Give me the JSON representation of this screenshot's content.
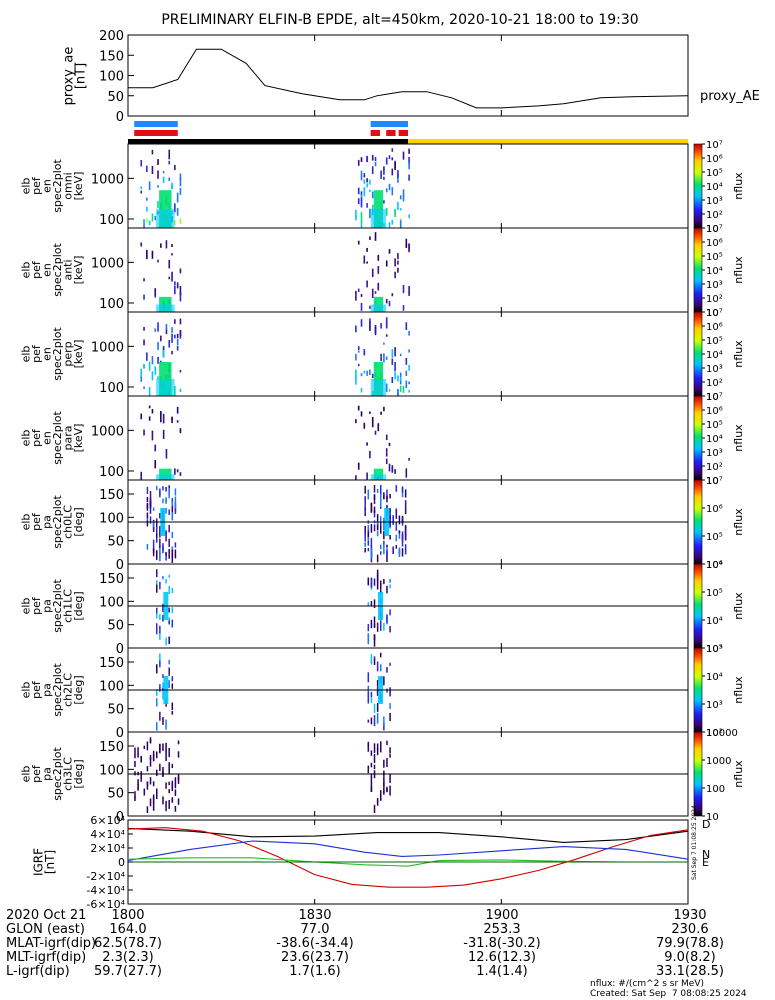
{
  "chart_data": {
    "type": "spectrogram",
    "title": "PRELIMINARY ELFIN-B EPDE, alt=450km, 2020-10-21 18:00 to 19:30",
    "x_range_minutes": [
      0,
      90
    ],
    "x_ticks": [
      "1800",
      "1830",
      "1900",
      "1930"
    ],
    "x_tick_minutes": [
      0,
      30,
      60,
      90
    ],
    "proxy_ae": {
      "ylabel": "proxy_ae\n[nT]",
      "legend": "proxy_AE",
      "ylim": [
        0,
        200
      ],
      "yticks": [
        "0",
        "50",
        "100",
        "150",
        "200"
      ],
      "minutes": [
        0,
        4,
        8,
        11,
        15,
        19,
        22,
        28,
        34,
        38,
        40,
        44,
        48,
        52,
        56,
        60,
        66,
        70,
        76,
        82,
        90
      ],
      "values": [
        70,
        70,
        90,
        165,
        165,
        130,
        75,
        55,
        40,
        40,
        50,
        60,
        60,
        45,
        20,
        20,
        25,
        30,
        45,
        48,
        50
      ]
    },
    "indicator_bars": {
      "blue": [
        [
          1,
          8
        ],
        [
          39,
          45
        ]
      ],
      "red": [
        [
          1,
          8
        ],
        [
          39,
          40.5
        ],
        [
          41.5,
          43
        ],
        [
          43.5,
          45
        ]
      ],
      "black": [
        [
          0,
          45
        ]
      ],
      "yellow": [
        [
          45,
          90
        ]
      ]
    },
    "spectra": [
      {
        "label": "elb\npef\nen\nspec2plot\nomni\n[keV]",
        "yticks": [
          "100",
          "1000"
        ],
        "cbar_ticks": [
          "10",
          "10²",
          "10³",
          "10⁴",
          "10⁵",
          "10⁶",
          "10⁷"
        ],
        "cbar_label": "nflux",
        "intensity": 1.0
      },
      {
        "label": "elb\npef\nen\nspec2plot\nanti\n[keV]",
        "yticks": [
          "100",
          "1000"
        ],
        "cbar_ticks": [
          "10",
          "10²",
          "10³",
          "10⁴",
          "10⁵",
          "10⁶",
          "10⁷"
        ],
        "cbar_label": "nflux",
        "intensity": 0.4
      },
      {
        "label": "elb\npef\nen\nspec2plot\nperp\n[keV]",
        "yticks": [
          "100",
          "1000"
        ],
        "cbar_ticks": [
          "10",
          "10²",
          "10³",
          "10⁴",
          "10⁵",
          "10⁶",
          "10⁷"
        ],
        "cbar_label": "nflux",
        "intensity": 0.9
      },
      {
        "label": "elb\npef\nen\nspec2plot\npara\n[keV]",
        "yticks": [
          "100",
          "1000"
        ],
        "cbar_ticks": [
          "10",
          "10²",
          "10³",
          "10⁴",
          "10⁵",
          "10⁶",
          "10⁷"
        ],
        "cbar_label": "nflux",
        "intensity": 0.3
      }
    ],
    "pitch_angle": [
      {
        "label": "elb\npef\npa\nspec2plot\nch0LC\n[deg]",
        "yticks": [
          "0",
          "50",
          "100",
          "150"
        ],
        "ylim": [
          0,
          180
        ],
        "line_deg": 90,
        "cbar_ticks": [
          "10⁴",
          "10⁵",
          "10⁶",
          "10⁷"
        ],
        "cbar_label": "nflux"
      },
      {
        "label": "elb\npef\npa\nspec2plot\nch1LC\n[deg]",
        "yticks": [
          "0",
          "50",
          "100",
          "150"
        ],
        "ylim": [
          0,
          180
        ],
        "line_deg": 90,
        "cbar_ticks": [
          "10³",
          "10⁴",
          "10⁵",
          "10⁶"
        ],
        "cbar_label": "nflux"
      },
      {
        "label": "elb\npef\npa\nspec2plot\nch2LC\n[deg]",
        "yticks": [
          "0",
          "50",
          "100",
          "150"
        ],
        "ylim": [
          0,
          180
        ],
        "line_deg": 90,
        "cbar_ticks": [
          "10²",
          "10³",
          "10⁴",
          "10⁵"
        ],
        "cbar_label": "nflux"
      },
      {
        "label": "elb\npef\npa\nspec2plot\nch3LC\n[deg]",
        "yticks": [
          "0",
          "50",
          "100",
          "150"
        ],
        "ylim": [
          0,
          180
        ],
        "line_deg": 90,
        "cbar_ticks": [
          "10",
          "100",
          "1000",
          "10000"
        ],
        "cbar_label": "nflux"
      }
    ],
    "igrf": {
      "ylabel": "IGRF\n[nT]",
      "ylim": [
        -60000,
        60000
      ],
      "yticks": [
        "-6×10⁴",
        "-4×10⁴",
        "-2×10⁴",
        "0",
        "2×10⁴",
        "4×10⁴",
        "6×10⁴"
      ],
      "legend": [
        "D",
        "N",
        "E"
      ],
      "legend_colors": [
        "#d40000",
        "#1a2fd6",
        "#22c21e"
      ],
      "stamp": "Sat Sep  7 01:08:25 2024",
      "series": [
        {
          "name": "total",
          "color": "#000000",
          "minutes": [
            0,
            10,
            20,
            30,
            40,
            50,
            60,
            70,
            80,
            90
          ],
          "values": [
            48000,
            44000,
            36000,
            37000,
            42000,
            42000,
            36000,
            28000,
            32000,
            44000
          ]
        },
        {
          "name": "D",
          "color": "#d40000",
          "minutes": [
            0,
            6,
            12,
            18,
            24,
            30,
            36,
            42,
            48,
            54,
            60,
            66,
            72,
            78,
            84,
            90
          ],
          "values": [
            47000,
            49000,
            44000,
            30000,
            8000,
            -18000,
            -32000,
            -36000,
            -36000,
            -33000,
            -24000,
            -12000,
            4000,
            22000,
            38000,
            46000
          ]
        },
        {
          "name": "N",
          "color": "#1a2fd6",
          "minutes": [
            0,
            10,
            20,
            30,
            38,
            44,
            50,
            60,
            70,
            80,
            90
          ],
          "values": [
            2000,
            18000,
            30000,
            26000,
            14000,
            8000,
            10000,
            16000,
            22000,
            18000,
            4000
          ]
        },
        {
          "name": "E",
          "color": "#22c21e",
          "minutes": [
            0,
            10,
            20,
            30,
            38,
            42,
            45,
            50,
            60,
            70,
            80,
            90
          ],
          "values": [
            4000,
            6000,
            6000,
            0,
            -4000,
            -5000,
            -6000,
            2000,
            3000,
            1000,
            0,
            0
          ]
        },
        {
          "name": "zero",
          "color": "#0a5d0a",
          "minutes": [
            0,
            90
          ],
          "values": [
            0,
            0
          ]
        }
      ]
    },
    "ephemeris": {
      "rows": [
        {
          "label": "2020 Oct 21",
          "values": [
            "1800",
            "1830",
            "1900",
            "1930"
          ]
        },
        {
          "label": "GLON (east)",
          "values": [
            "164.0",
            "77.0",
            "253.3",
            "230.6"
          ]
        },
        {
          "label": "MLAT-igrf(dip)",
          "values": [
            "62.5(78.7)",
            "-38.6(-34.4)",
            "-31.8(-30.2)",
            "79.9(78.8)"
          ]
        },
        {
          "label": "MLT-igrf(dip)",
          "values": [
            "2.3(2.3)",
            "23.6(23.7)",
            "12.6(12.3)",
            "9.0(8.2)"
          ]
        },
        {
          "label": "L-igrf(dip)",
          "values": [
            "59.7(27.7)",
            "1.7(1.6)",
            "1.4(1.4)",
            "33.1(28.5)"
          ]
        }
      ]
    },
    "footer": {
      "units": "nflux: #/(cm^2 s sr MeV)",
      "created": "Created: Sat Sep  7 08:08:25 2024"
    }
  }
}
